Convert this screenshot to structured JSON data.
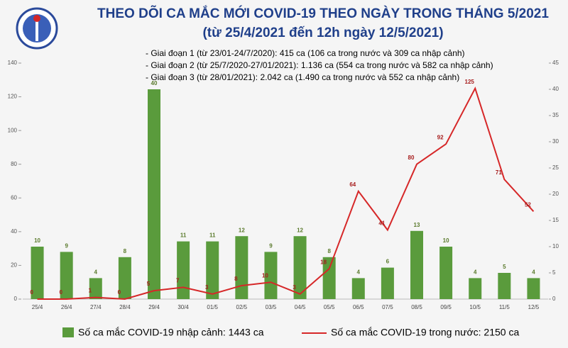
{
  "chart_data": {
    "type": "bar-line",
    "title": "THEO DÕI CA MẮC MỚI COVID-19 THEO NGÀY TRONG THÁNG 5/2021",
    "subtitle": "(từ 25/4/2021 đến 12h ngày 12/5/2021)",
    "notes": [
      "- Giai đoạn 1 (từ 23/01-24/7/2020): 415 ca (106 ca trong nước và 309 ca nhập cảnh)",
      "- Giai đoạn 2 (từ 25/7/2020-27/01/2021): 1.136 ca (554 ca trong nước và 582 ca nhập cảnh)",
      "- Giai đoạn 3 (từ 28/01/2021): 2.042 ca (1.490 ca trong nước và 552 ca nhập cảnh)"
    ],
    "categories": [
      "25/4",
      "26/4",
      "27/4",
      "28/4",
      "29/4",
      "30/4",
      "01/5",
      "02/5",
      "03/5",
      "04/5",
      "05/5",
      "06/5",
      "07/5",
      "08/5",
      "09/5",
      "10/5",
      "11/5",
      "12/5"
    ],
    "series": [
      {
        "name": "Số ca mắc COVID-19 nhập cảnh: 1443 ca",
        "color": "#5a9b3c",
        "type": "bar",
        "axis": "y2",
        "values": [
          10,
          9,
          4,
          8,
          40,
          11,
          11,
          12,
          9,
          12,
          8,
          4,
          6,
          13,
          10,
          4,
          5,
          4
        ]
      },
      {
        "name": "Số ca mắc COVID-19 trong nước: 2150 ca",
        "color": "#d62728",
        "type": "line",
        "values": [
          0,
          0,
          1,
          0,
          5,
          7,
          3,
          8,
          10,
          3,
          18,
          64,
          41,
          80,
          92,
          125,
          71,
          52
        ]
      }
    ],
    "ylim": [
      0,
      140
    ],
    "yticks": [
      0,
      20,
      40,
      60,
      80,
      100,
      120,
      140
    ],
    "y2lim": [
      0,
      45
    ],
    "y2ticks": [
      0,
      5,
      10,
      15,
      20,
      25,
      30,
      35,
      40,
      45
    ]
  }
}
